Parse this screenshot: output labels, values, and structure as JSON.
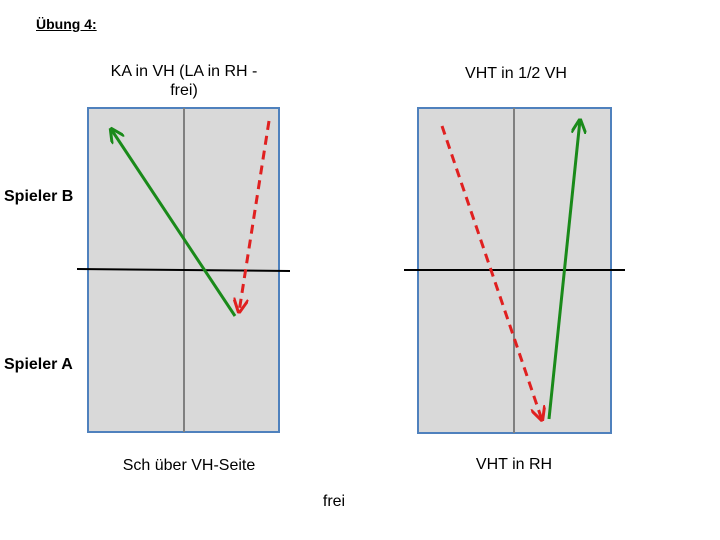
{
  "header": {
    "title": "Übung 4:"
  },
  "players": {
    "top": "Spieler B",
    "bottom": "Spieler A"
  },
  "tables": [
    {
      "top_caption": "KA in VH (LA in RH - frei)",
      "bottom_caption": "Sch über VH-Seite"
    },
    {
      "top_caption": "VHT in 1/2 VH",
      "bottom_caption": "VHT in RH"
    }
  ],
  "footer": "frei"
}
